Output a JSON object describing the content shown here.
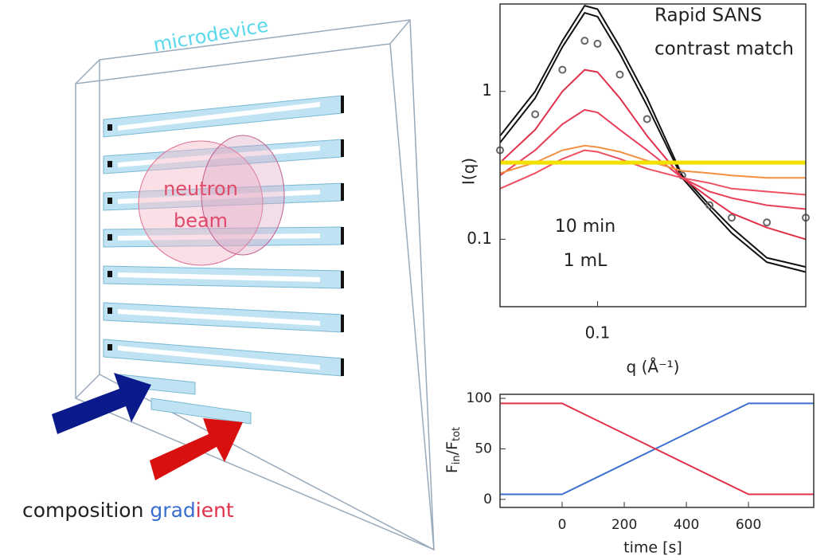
{
  "diagram": {
    "box_label": "microdevice",
    "beam_label": [
      "neutron",
      "beam"
    ],
    "gradient_label": [
      "composition",
      "grad",
      "ient"
    ]
  },
  "chart_data": [
    {
      "type": "line",
      "annotations": [
        "Rapid SANS",
        "contrast match",
        "10 min",
        "1 mL"
      ],
      "xlabel": "q (Å⁻¹)",
      "ylabel": "I(q)",
      "xlog": true,
      "ylog": true,
      "xlim": [
        0.045,
        0.55
      ],
      "ylim": [
        0.035,
        3.9
      ],
      "xticks": [
        0.1
      ],
      "yticks": [
        0.1,
        1
      ],
      "x": [
        0.045,
        0.06,
        0.075,
        0.09,
        0.1,
        0.12,
        0.15,
        0.2,
        0.25,
        0.3,
        0.4,
        0.55
      ],
      "series": [
        {
          "color": "#111111",
          "values": [
            0.5,
            1.0,
            2.2,
            3.8,
            3.6,
            2.0,
            0.9,
            0.27,
            0.17,
            0.12,
            0.075,
            0.065
          ]
        },
        {
          "color": "#111111",
          "values": [
            0.45,
            0.9,
            2.0,
            3.4,
            3.2,
            1.8,
            0.8,
            0.26,
            0.16,
            0.11,
            0.07,
            0.06
          ]
        },
        {
          "color": "#666666",
          "marker": true,
          "values": [
            0.4,
            0.7,
            1.4,
            2.2,
            2.1,
            1.3,
            0.65,
            0.27,
            0.17,
            0.14,
            0.13,
            0.14
          ]
        },
        {
          "color": "#e0304a",
          "values": [
            0.33,
            0.55,
            1.0,
            1.4,
            1.35,
            0.9,
            0.5,
            0.26,
            0.19,
            0.15,
            0.12,
            0.1
          ]
        },
        {
          "color": "#e8405a",
          "values": [
            0.27,
            0.4,
            0.6,
            0.75,
            0.72,
            0.55,
            0.4,
            0.26,
            0.21,
            0.19,
            0.17,
            0.16
          ]
        },
        {
          "color": "#ee5060",
          "values": [
            0.22,
            0.28,
            0.35,
            0.4,
            0.39,
            0.35,
            0.3,
            0.26,
            0.24,
            0.22,
            0.21,
            0.2
          ]
        },
        {
          "color": "#f39040",
          "values": [
            0.28,
            0.33,
            0.4,
            0.43,
            0.42,
            0.39,
            0.34,
            0.29,
            0.28,
            0.27,
            0.26,
            0.26
          ]
        },
        {
          "color": "#f2e000",
          "width": 5,
          "values": [
            0.33,
            0.33,
            0.33,
            0.33,
            0.33,
            0.33,
            0.33,
            0.33,
            0.33,
            0.33,
            0.33,
            0.33
          ]
        }
      ]
    },
    {
      "type": "line",
      "xlabel": "time [s]",
      "ylabel_parts": [
        "F",
        "in",
        "/F",
        "tot"
      ],
      "xlim": [
        -200,
        810
      ],
      "ylim": [
        -8,
        104
      ],
      "xticks": [
        0,
        200,
        400,
        600
      ],
      "yticks": [
        0,
        50,
        100
      ],
      "x": [
        -200,
        0,
        600,
        810
      ],
      "series": [
        {
          "color": "#3a6fd0",
          "values": [
            5,
            5,
            95,
            95
          ]
        },
        {
          "color": "#e0304a",
          "values": [
            95,
            95,
            5,
            5
          ]
        }
      ]
    }
  ]
}
